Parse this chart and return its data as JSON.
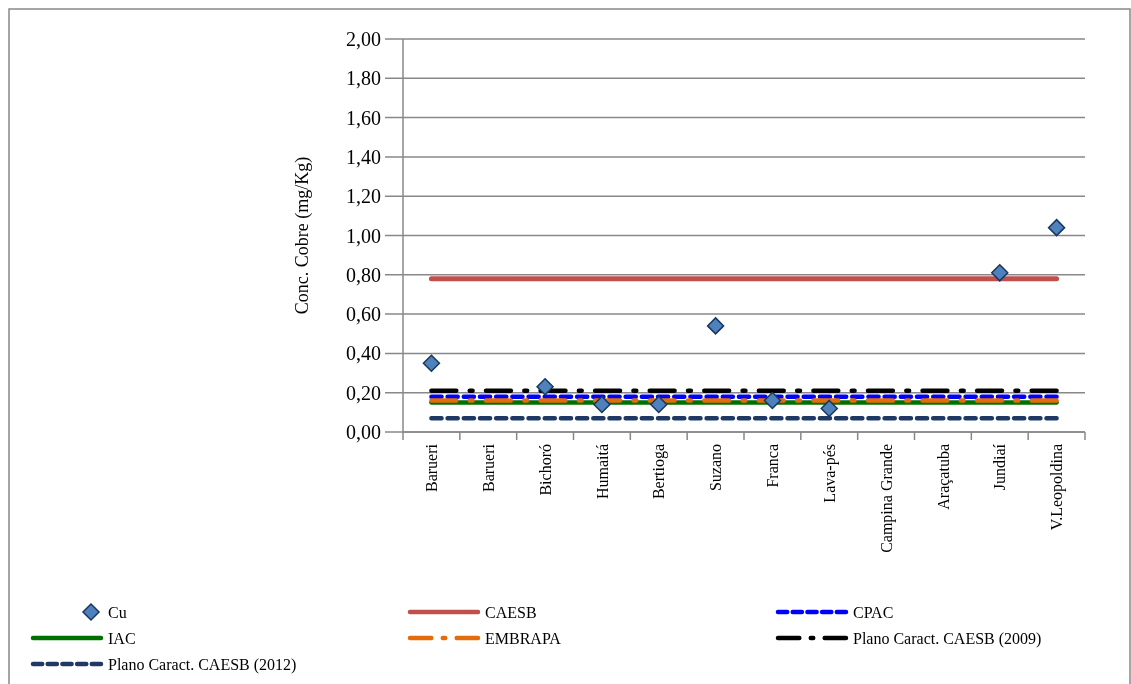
{
  "chart_data": {
    "type": "scatter",
    "ylabel": "Conc. Cobre (mg/Kg)",
    "categories": [
      "Barueri",
      "Barueri",
      "Bichoró",
      "Humaitá",
      "Bertioga",
      "Suzano",
      "Franca",
      "Lava-pés",
      "Campina Grande",
      "Araçatuba",
      "Jundiaí",
      "V.Leopoldina"
    ],
    "ylim": [
      0,
      2
    ],
    "yticks": [
      {
        "value": 0,
        "label": "0,00"
      },
      {
        "value": 0.2,
        "label": "0,20"
      },
      {
        "value": 0.4,
        "label": "0,40"
      },
      {
        "value": 0.6,
        "label": "0,60"
      },
      {
        "value": 0.8,
        "label": "0,80"
      },
      {
        "value": 1,
        "label": "1,00"
      },
      {
        "value": 1.2,
        "label": "1,20"
      },
      {
        "value": 1.4,
        "label": "1,40"
      },
      {
        "value": 1.6,
        "label": "1,60"
      },
      {
        "value": 1.8,
        "label": "1,80"
      },
      {
        "value": 2,
        "label": "2,00"
      }
    ],
    "grid": "y",
    "legend": "bottom",
    "series": [
      {
        "name": "Cu",
        "marker": "diamond",
        "color": "#4f81bd",
        "values": [
          0.35,
          null,
          0.23,
          0.14,
          0.14,
          0.54,
          0.16,
          0.12,
          null,
          null,
          0.81,
          1.04
        ]
      },
      {
        "name": "CAESB",
        "type": "line",
        "line_style": "solid",
        "color": "#c0504d",
        "values": [
          0.78,
          0.78,
          0.78,
          0.78,
          0.78,
          0.78,
          0.78,
          0.78,
          0.78,
          0.78,
          0.78,
          0.78
        ]
      },
      {
        "name": "CPAC",
        "type": "line",
        "line_style": "dashed",
        "color": "#0000ff",
        "values": [
          0.18,
          0.18,
          0.18,
          0.18,
          0.18,
          0.18,
          0.18,
          0.18,
          0.18,
          0.18,
          0.18,
          0.18
        ]
      },
      {
        "name": "IAC",
        "type": "line",
        "line_style": "solid",
        "color": "#007000",
        "values": [
          0.15,
          0.15,
          0.15,
          0.15,
          0.15,
          0.15,
          0.15,
          0.15,
          0.15,
          0.15,
          0.15,
          0.15
        ]
      },
      {
        "name": "EMBRAPA",
        "type": "line",
        "line_style": "dashdot",
        "color": "#e46c0a",
        "values": [
          0.16,
          0.16,
          0.16,
          0.16,
          0.16,
          0.16,
          0.16,
          0.16,
          0.16,
          0.16,
          0.16,
          0.16
        ]
      },
      {
        "name": "Plano Caract. CAESB (2009)",
        "type": "line",
        "line_style": "dashdot",
        "color": "#000000",
        "values": [
          0.21,
          0.21,
          0.21,
          0.21,
          0.21,
          0.21,
          0.21,
          0.21,
          0.21,
          0.21,
          0.21,
          0.21
        ]
      },
      {
        "name": "Plano Caract. CAESB (2012)",
        "type": "line",
        "line_style": "dashed",
        "color": "#1f3864",
        "values": [
          0.07,
          0.07,
          0.07,
          0.07,
          0.07,
          0.07,
          0.07,
          0.07,
          0.07,
          0.07,
          0.07,
          0.07
        ]
      }
    ]
  }
}
